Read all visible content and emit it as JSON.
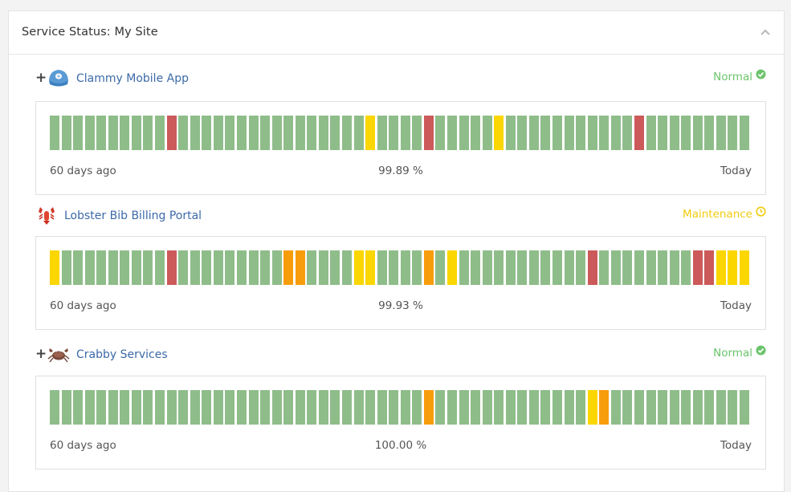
{
  "panel": {
    "title": "Service Status: My Site"
  },
  "colors": {
    "green": "#8fbd8a",
    "red": "#cc5a5a",
    "yellow": "#fbd600",
    "orange": "#f79d0c",
    "link": "#3c6aa8",
    "normal": "#6cc36c",
    "maintenance": "#f1cc0f"
  },
  "services": [
    {
      "name": "Clammy Mobile App",
      "icon": "clam-icon",
      "expandable": true,
      "status": {
        "label": "Normal",
        "type": "normal",
        "icon": "check-circle-icon"
      },
      "uptime": "99.89 %",
      "left_label": "60 days ago",
      "right_label": "Today",
      "days": [
        "g",
        "g",
        "g",
        "g",
        "g",
        "g",
        "g",
        "g",
        "g",
        "g",
        "r",
        "g",
        "g",
        "g",
        "g",
        "g",
        "g",
        "g",
        "g",
        "g",
        "g",
        "g",
        "g",
        "g",
        "g",
        "g",
        "g",
        "y",
        "g",
        "g",
        "g",
        "g",
        "r",
        "g",
        "g",
        "g",
        "g",
        "g",
        "y",
        "g",
        "g",
        "g",
        "g",
        "g",
        "g",
        "g",
        "g",
        "g",
        "g",
        "g",
        "r",
        "g",
        "g",
        "g",
        "g",
        "g",
        "g",
        "g",
        "g",
        "g"
      ]
    },
    {
      "name": "Lobster Bib Billing Portal",
      "icon": "lobster-icon",
      "expandable": false,
      "status": {
        "label": "Maintenance",
        "type": "maint",
        "icon": "clock-icon"
      },
      "uptime": "99.93 %",
      "left_label": "60 days ago",
      "right_label": "Today",
      "days": [
        "y",
        "g",
        "g",
        "g",
        "g",
        "g",
        "g",
        "g",
        "g",
        "g",
        "r",
        "g",
        "g",
        "g",
        "g",
        "g",
        "g",
        "g",
        "g",
        "g",
        "o",
        "o",
        "g",
        "g",
        "g",
        "g",
        "y",
        "y",
        "g",
        "g",
        "g",
        "g",
        "o",
        "g",
        "y",
        "g",
        "g",
        "g",
        "g",
        "g",
        "g",
        "g",
        "g",
        "g",
        "g",
        "g",
        "r",
        "g",
        "g",
        "g",
        "g",
        "g",
        "g",
        "g",
        "g",
        "r",
        "r",
        "y",
        "y",
        "y"
      ]
    },
    {
      "name": "Crabby Services",
      "icon": "crab-icon",
      "expandable": true,
      "status": {
        "label": "Normal",
        "type": "normal",
        "icon": "check-circle-icon"
      },
      "uptime": "100.00 %",
      "left_label": "60 days ago",
      "right_label": "Today",
      "days": [
        "g",
        "g",
        "g",
        "g",
        "g",
        "g",
        "g",
        "g",
        "g",
        "g",
        "g",
        "g",
        "g",
        "g",
        "g",
        "g",
        "g",
        "g",
        "g",
        "g",
        "g",
        "g",
        "g",
        "g",
        "g",
        "g",
        "g",
        "g",
        "g",
        "g",
        "g",
        "g",
        "o",
        "g",
        "g",
        "g",
        "g",
        "g",
        "g",
        "g",
        "g",
        "g",
        "g",
        "g",
        "g",
        "g",
        "y",
        "o",
        "g",
        "g",
        "g",
        "g",
        "g",
        "g",
        "g",
        "g",
        "g",
        "g",
        "g",
        "g"
      ]
    }
  ]
}
